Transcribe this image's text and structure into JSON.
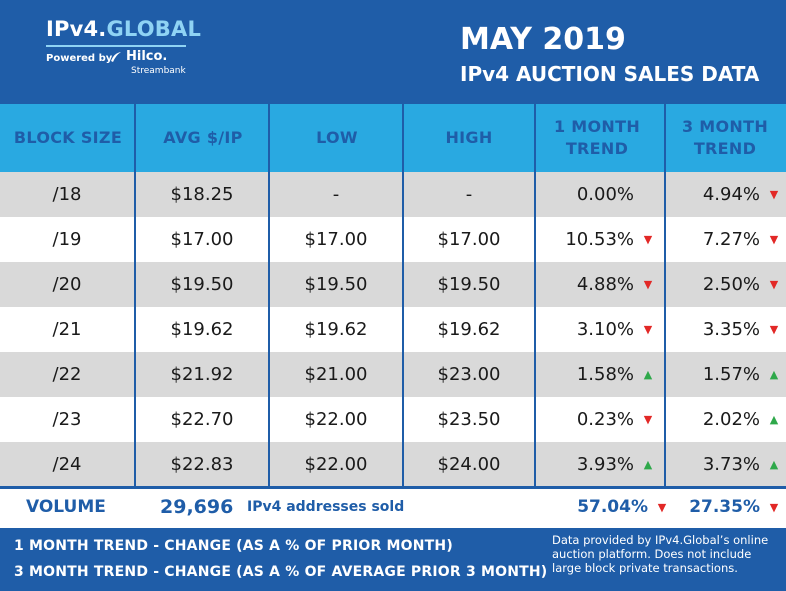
{
  "brand": {
    "logo_prefix": "IPv4.",
    "logo_accent": "GLOBAL",
    "powered_by": "Powered by",
    "partner": "Hilco.",
    "partner_sub": "Streambank"
  },
  "title": {
    "main": "MAY 2019",
    "sub": "IPv4 AUCTION SALES DATA"
  },
  "columns": [
    "BLOCK SIZE",
    "AVG $/IP",
    "LOW",
    "HIGH",
    "1 MONTH TREND",
    "3 MONTH TREND"
  ],
  "rows": [
    {
      "block": "/18",
      "avg": "$18.25",
      "low": "-",
      "high": "-",
      "trend1": "0.00%",
      "trend1_dir": "none",
      "trend3": "4.94%",
      "trend3_dir": "down"
    },
    {
      "block": "/19",
      "avg": "$17.00",
      "low": "$17.00",
      "high": "$17.00",
      "trend1": "10.53%",
      "trend1_dir": "down",
      "trend3": "7.27%",
      "trend3_dir": "down"
    },
    {
      "block": "/20",
      "avg": "$19.50",
      "low": "$19.50",
      "high": "$19.50",
      "trend1": "4.88%",
      "trend1_dir": "down",
      "trend3": "2.50%",
      "trend3_dir": "down"
    },
    {
      "block": "/21",
      "avg": "$19.62",
      "low": "$19.62",
      "high": "$19.62",
      "trend1": "3.10%",
      "trend1_dir": "down",
      "trend3": "3.35%",
      "trend3_dir": "down"
    },
    {
      "block": "/22",
      "avg": "$21.92",
      "low": "$21.00",
      "high": "$23.00",
      "trend1": "1.58%",
      "trend1_dir": "up",
      "trend3": "1.57%",
      "trend3_dir": "up"
    },
    {
      "block": "/23",
      "avg": "$22.70",
      "low": "$22.00",
      "high": "$23.50",
      "trend1": "0.23%",
      "trend1_dir": "down",
      "trend3": "2.02%",
      "trend3_dir": "up"
    },
    {
      "block": "/24",
      "avg": "$22.83",
      "low": "$22.00",
      "high": "$24.00",
      "trend1": "3.93%",
      "trend1_dir": "up",
      "trend3": "3.73%",
      "trend3_dir": "up"
    }
  ],
  "volume": {
    "label": "VOLUME",
    "count": "29,696",
    "count_text": "IPv4 addresses sold",
    "trend1": "57.04%",
    "trend1_dir": "down",
    "trend3": "27.35%",
    "trend3_dir": "down"
  },
  "footer": {
    "note1": "1 MONTH TREND - CHANGE (AS A % OF PRIOR MONTH)",
    "note3": "3 MONTH TREND - CHANGE (AS A % OF AVERAGE PRIOR 3 MONTH)",
    "source": "Data provided by IPv4.Global’s online auction platform. Does not include large block private transactions."
  },
  "colors": {
    "navy": "#1f5da8",
    "header_blue": "#29a9e1",
    "row_alt": "#d9d9d9",
    "up": "#2ea84a",
    "down": "#e22826"
  },
  "icons": {
    "up": "triangle-up-icon",
    "down": "triangle-down-icon"
  }
}
